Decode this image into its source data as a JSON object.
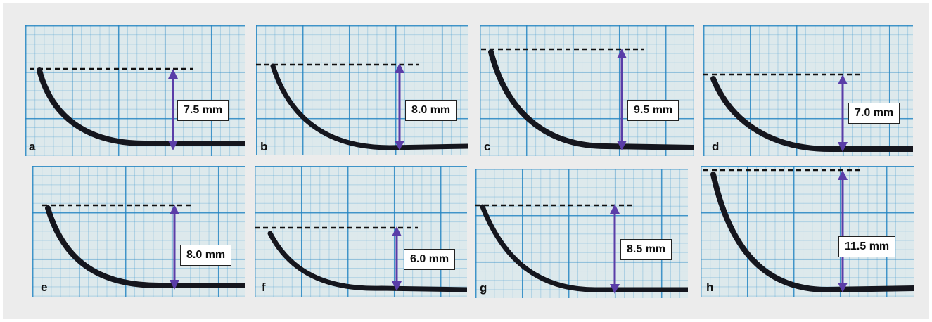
{
  "panels": [
    {
      "label": "a",
      "measurement": "7.5 mm"
    },
    {
      "label": "b",
      "measurement": "8.0 mm"
    },
    {
      "label": "c",
      "measurement": "9.5 mm"
    },
    {
      "label": "d",
      "measurement": "7.0 mm"
    },
    {
      "label": "e",
      "measurement": "8.0 mm"
    },
    {
      "label": "f",
      "measurement": "6.0 mm"
    },
    {
      "label": "g",
      "measurement": "8.5 mm"
    },
    {
      "label": "h",
      "measurement": "11.5 mm"
    }
  ],
  "colors": {
    "grid": "#2484c2",
    "paper": "#dde9ec",
    "arrow": "#5a3da8",
    "dashed_line": "#111111",
    "curve": "#15161e"
  }
}
